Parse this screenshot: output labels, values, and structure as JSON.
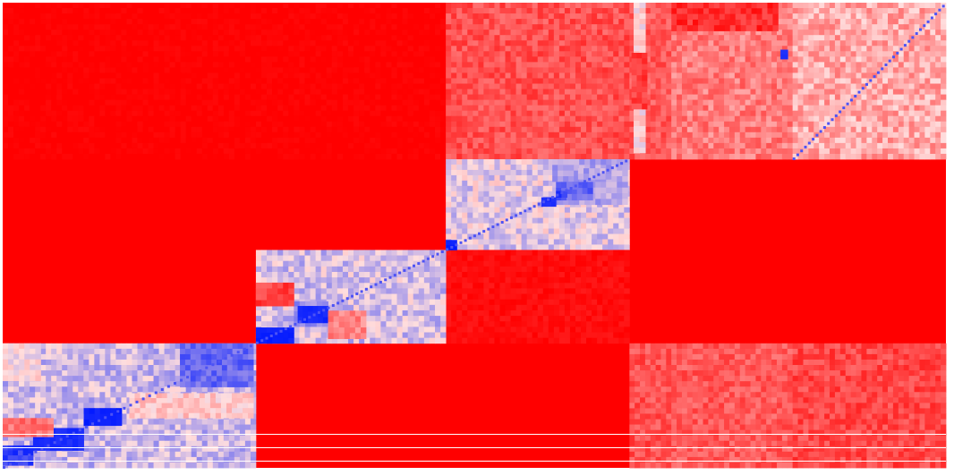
{
  "chart_data": {
    "type": "heatmap",
    "title": "",
    "xlabel": "",
    "ylabel": "",
    "legend": "none",
    "grid": false,
    "x_cluster_sizes": [
      284,
      213,
      206,
      47,
      136,
      172
    ],
    "y_cluster_sizes": [
      176,
      102,
      105,
      140
    ],
    "colors": {
      "background": "#ff0000",
      "low": "#0018ff",
      "mid": "#ffdede",
      "high": "#ff0000"
    },
    "background_value": 1.0,
    "value_range": [
      0,
      1
    ],
    "blocks": [
      {
        "xc": 0,
        "yc": 0,
        "value": 1.0,
        "tex": 0.02
      },
      {
        "xc": 1,
        "yc": 0,
        "value": 1.0,
        "tex": 0.02
      },
      {
        "xc": 2,
        "yc": 0,
        "value": 0.82,
        "tex": 0.08
      },
      {
        "xc": 3,
        "yc": 0,
        "value": 0.8,
        "tex": 0.08
      },
      {
        "xc": 4,
        "yc": 0,
        "value": 0.72,
        "tex": 0.1
      },
      {
        "xc": 5,
        "yc": 0,
        "value": 0.62,
        "tex": 0.12
      },
      {
        "xc": 2,
        "yc": 1,
        "value": 0.45,
        "tex": 0.12
      },
      {
        "xc": 2,
        "yc": 2,
        "value": 0.97,
        "tex": 0.03
      },
      {
        "xc": 1,
        "yc": 2,
        "value": 0.42,
        "tex": 0.12
      },
      {
        "xc": 0,
        "yc": 3,
        "value": 0.4,
        "tex": 0.12
      },
      {
        "xc": 3,
        "yc": 3,
        "value": 0.82,
        "tex": 0.08
      },
      {
        "xc": 4,
        "yc": 3,
        "value": 0.8,
        "tex": 0.08
      },
      {
        "xc": 5,
        "yc": 3,
        "value": 0.84,
        "tex": 0.08
      }
    ],
    "sub_blocks": [
      {
        "x": [
          0,
          0.12
        ],
        "y": [
          0.82,
          0.98
        ],
        "value": 0.1
      },
      {
        "x": [
          0.12,
          0.32
        ],
        "y": [
          0.68,
          0.86
        ],
        "value": 0.05
      },
      {
        "x": [
          0.32,
          0.47
        ],
        "y": [
          0.52,
          0.66
        ],
        "value": 0.02
      },
      {
        "x": [
          0.7,
          0.99
        ],
        "y": [
          0.0,
          0.35
        ],
        "value": 0.2
      },
      {
        "x": [
          0,
          0.15
        ],
        "y": [
          0.0,
          0.3
        ],
        "value": 0.5
      },
      {
        "x": [
          0.5,
          0.99
        ],
        "y": [
          0.4,
          0.6
        ],
        "value": 0.55
      },
      {
        "x": [
          0.0,
          0.2
        ],
        "y": [
          0.6,
          0.75
        ],
        "value": 0.75
      },
      {
        "x": [
          0,
          0.2
        ],
        "y": [
          0.83,
          1.0
        ],
        "value": 0.02
      },
      {
        "x": [
          0.2,
          0.38
        ],
        "y": [
          0.55,
          0.82
        ],
        "value": 0.3
      },
      {
        "x": [
          0.22,
          0.38
        ],
        "y": [
          0.6,
          0.78
        ],
        "value": 0.04
      },
      {
        "x": [
          0.38,
          0.58
        ],
        "y": [
          0.65,
          0.95
        ],
        "value": 0.7
      },
      {
        "x": [
          0.0,
          0.2
        ],
        "y": [
          0.35,
          0.6
        ],
        "value": 0.85
      },
      {
        "x": [
          0.58,
          0.99
        ],
        "y": [
          0.0,
          0.5
        ],
        "value": 0.35
      },
      {
        "x": [
          0.6,
          0.8
        ],
        "y": [
          0.25,
          0.45
        ],
        "value": 0.2
      },
      {
        "x": [
          0.0,
          0.06
        ],
        "y": [
          0.89,
          1.0
        ],
        "value": 0.02
      },
      {
        "x": [
          0.52,
          0.6
        ],
        "y": [
          0.42,
          0.52
        ],
        "value": 0.05
      },
      {
        "x": [
          0.6,
          0.66
        ],
        "y": [
          0.35,
          0.42
        ],
        "value": 0.1
      },
      {
        "x": [
          0.66,
          0.72
        ],
        "y": [
          0.25,
          0.33
        ],
        "value": 0.2
      },
      {
        "x": [
          0.72,
          0.9
        ],
        "y": [
          0.1,
          0.22
        ],
        "value": 0.35
      },
      {
        "x": [
          0.1,
          0.38
        ],
        "y": [
          0.0,
          0.96
        ],
        "value": 0.52
      },
      {
        "x": [
          0.05,
          0.42
        ],
        "y": [
          0.32,
          0.68
        ],
        "value": 0.85
      },
      {
        "x": [
          0.0,
          0.88
        ],
        "y": [
          0.0,
          0.18
        ],
        "value": 0.9
      },
      {
        "x": [
          0.9,
          0.96
        ],
        "y": [
          0.3,
          0.36
        ],
        "value": 0.05
      }
    ]
  }
}
